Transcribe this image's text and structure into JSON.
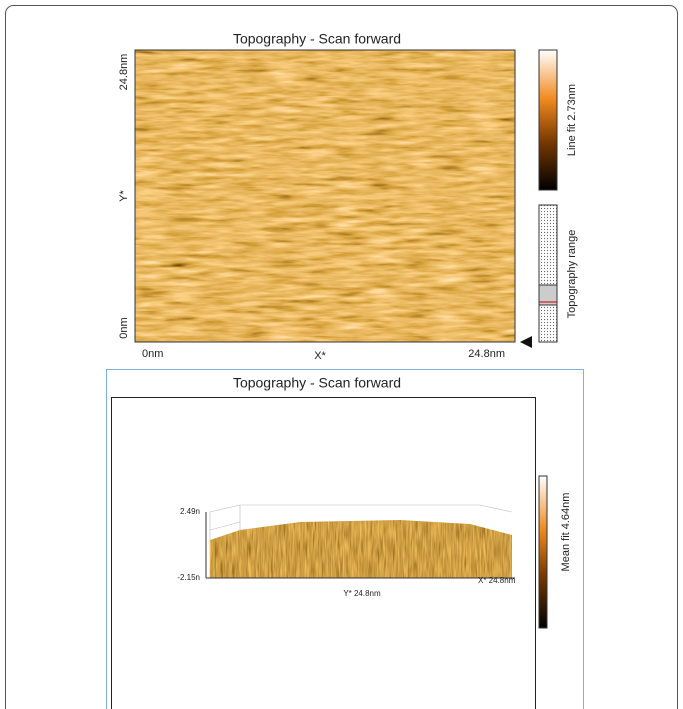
{
  "panels": [
    {
      "title": "Topography - Scan forward",
      "y_axis": {
        "label": "Y*",
        "ticks": [
          "24.8nm",
          "0nm"
        ]
      },
      "x_axis": {
        "label": "X*",
        "ticks": [
          "0nm",
          "24.8nm"
        ]
      },
      "colorbar_label": "Line fit 2.73nm",
      "range_label": "Topography range"
    },
    {
      "title": "Topography - Scan forward",
      "z_ticks": [
        "2.49n",
        "-2.15n"
      ],
      "y_axis_label": "Y* 24.8nm",
      "x_axis_label": "X* 24.8nm",
      "colorbar_label": "Mean fit 4.64nm"
    }
  ]
}
